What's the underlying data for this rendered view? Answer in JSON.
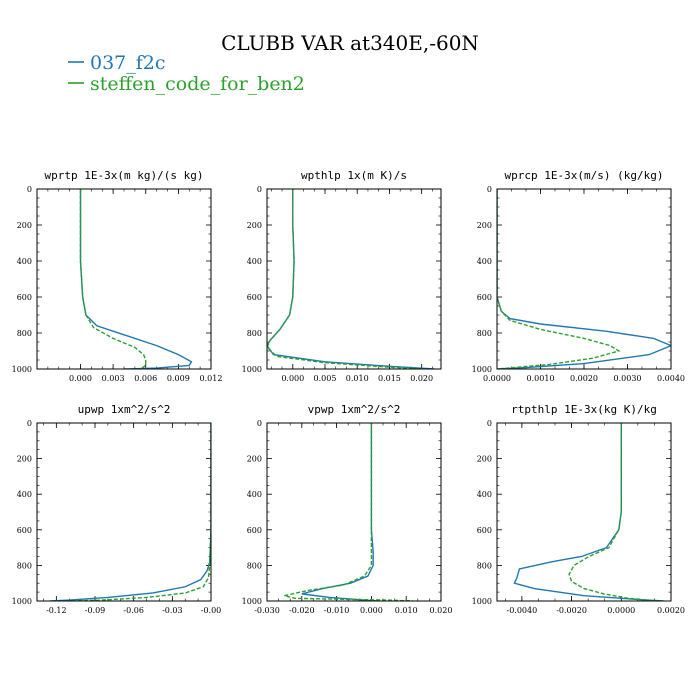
{
  "figure": {
    "title": "CLUBB VAR at340E,-60N",
    "legend": [
      {
        "label": "037_f2c",
        "color": "#1f77b4",
        "dash": "solid"
      },
      {
        "label": "steffen_code_for_ben2",
        "color": "#2ca02c",
        "dash": "dashed"
      }
    ]
  },
  "chart_data": [
    {
      "type": "line",
      "title": "wprtp  1E-3x(m kg)/(s kg)",
      "xlim": [
        -0.004,
        0.012
      ],
      "ylim": [
        0,
        1000
      ],
      "y_inverted": true,
      "xticks": [
        0.0,
        0.003,
        0.006,
        0.009,
        0.012
      ],
      "xtick_labels": [
        "0.000",
        "0.003",
        "0.006",
        "0.009",
        "0.012"
      ],
      "yticks": [
        0,
        200,
        400,
        600,
        800,
        1000
      ],
      "series": [
        {
          "name": "037_f2c",
          "color": "#1f77b4",
          "points": [
            [
              0.0,
              0
            ],
            [
              0.0,
              200
            ],
            [
              0.0,
              400
            ],
            [
              0.0002,
              600
            ],
            [
              0.0005,
              700
            ],
            [
              0.0015,
              760
            ],
            [
              0.004,
              810
            ],
            [
              0.007,
              870
            ],
            [
              0.009,
              920
            ],
            [
              0.0102,
              960
            ],
            [
              0.01,
              980
            ],
            [
              0.007,
              995
            ],
            [
              0.004,
              1000
            ]
          ]
        },
        {
          "name": "steffen_code_for_ben2",
          "color": "#2ca02c",
          "points": [
            [
              0.0,
              0
            ],
            [
              0.0,
              200
            ],
            [
              0.0,
              400
            ],
            [
              0.0002,
              600
            ],
            [
              0.0005,
              700
            ],
            [
              0.0012,
              770
            ],
            [
              0.003,
              830
            ],
            [
              0.005,
              880
            ],
            [
              0.0058,
              920
            ],
            [
              0.006,
              950
            ],
            [
              0.006,
              980
            ],
            [
              0.0055,
              1000
            ]
          ]
        }
      ]
    },
    {
      "type": "line",
      "title": "wpthlp  1x(m K)/s",
      "xlim": [
        -0.004,
        0.023
      ],
      "ylim": [
        0,
        1000
      ],
      "y_inverted": true,
      "xticks": [
        0.0,
        0.005,
        0.01,
        0.015,
        0.02
      ],
      "xtick_labels": [
        "0.000",
        "0.005",
        "0.010",
        "0.015",
        "0.020"
      ],
      "yticks": [
        0,
        200,
        400,
        600,
        800,
        1000
      ],
      "series": [
        {
          "name": "037_f2c",
          "color": "#1f77b4",
          "points": [
            [
              0.0,
              0
            ],
            [
              0.0,
              200
            ],
            [
              0.0002,
              400
            ],
            [
              0.0,
              600
            ],
            [
              -0.0005,
              700
            ],
            [
              -0.002,
              780
            ],
            [
              -0.0035,
              840
            ],
            [
              -0.004,
              870
            ],
            [
              -0.003,
              920
            ],
            [
              0.005,
              960
            ],
            [
              0.015,
              985
            ],
            [
              0.022,
              1000
            ]
          ]
        },
        {
          "name": "steffen_code_for_ben2",
          "color": "#2ca02c",
          "points": [
            [
              0.0,
              0
            ],
            [
              0.0,
              200
            ],
            [
              0.0002,
              400
            ],
            [
              0.0,
              600
            ],
            [
              -0.0005,
              700
            ],
            [
              -0.002,
              780
            ],
            [
              -0.0035,
              840
            ],
            [
              -0.004,
              880
            ],
            [
              -0.0025,
              930
            ],
            [
              0.005,
              965
            ],
            [
              0.015,
              990
            ],
            [
              0.02,
              1000
            ]
          ]
        }
      ]
    },
    {
      "type": "line",
      "title": "wprcp  1E-3x(m/s) (kg/kg)",
      "xlim": [
        0,
        0.004
      ],
      "ylim": [
        0,
        1000
      ],
      "y_inverted": true,
      "xticks": [
        0.0,
        0.001,
        0.002,
        0.003,
        0.004
      ],
      "xtick_labels": [
        "0.0000",
        "0.0010",
        "0.0020",
        "0.0030",
        "0.0040"
      ],
      "yticks": [
        0,
        200,
        400,
        600,
        800,
        1000
      ],
      "series": [
        {
          "name": "037_f2c",
          "color": "#1f77b4",
          "points": [
            [
              0.0,
              0
            ],
            [
              0.0,
              400
            ],
            [
              0.0,
              600
            ],
            [
              0.0001,
              680
            ],
            [
              0.0003,
              720
            ],
            [
              0.001,
              750
            ],
            [
              0.0025,
              790
            ],
            [
              0.0036,
              830
            ],
            [
              0.004,
              870
            ],
            [
              0.0035,
              920
            ],
            [
              0.002,
              970
            ],
            [
              0.0008,
              990
            ],
            [
              0.0,
              1000
            ]
          ]
        },
        {
          "name": "steffen_code_for_ben2",
          "color": "#2ca02c",
          "points": [
            [
              0.0,
              0
            ],
            [
              0.0,
              400
            ],
            [
              0.0,
              600
            ],
            [
              0.0001,
              680
            ],
            [
              0.0003,
              730
            ],
            [
              0.001,
              780
            ],
            [
              0.002,
              830
            ],
            [
              0.0026,
              870
            ],
            [
              0.0028,
              900
            ],
            [
              0.0022,
              940
            ],
            [
              0.0012,
              975
            ],
            [
              0.0,
              1000
            ]
          ]
        }
      ]
    },
    {
      "type": "line",
      "title": "upwp  1xm^2/s^2",
      "xlim": [
        -0.135,
        0.0
      ],
      "ylim": [
        0,
        1000
      ],
      "y_inverted": true,
      "xticks": [
        -0.12,
        -0.09,
        -0.06,
        -0.03,
        0.0
      ],
      "xtick_labels": [
        "-0.12",
        "-0.09",
        "-0.06",
        "-0.03",
        "-0.00"
      ],
      "yticks": [
        0,
        200,
        400,
        600,
        800,
        1000
      ],
      "series": [
        {
          "name": "037_f2c",
          "color": "#1f77b4",
          "points": [
            [
              0.0,
              0
            ],
            [
              0.0,
              200
            ],
            [
              0.0,
              600
            ],
            [
              -0.001,
              780
            ],
            [
              -0.003,
              830
            ],
            [
              -0.008,
              880
            ],
            [
              -0.02,
              920
            ],
            [
              -0.045,
              955
            ],
            [
              -0.08,
              980
            ],
            [
              -0.11,
              995
            ],
            [
              -0.125,
              1000
            ]
          ]
        },
        {
          "name": "steffen_code_for_ben2",
          "color": "#2ca02c",
          "points": [
            [
              0.0,
              0
            ],
            [
              0.0,
              200
            ],
            [
              0.0,
              600
            ],
            [
              -0.001,
              800
            ],
            [
              -0.002,
              870
            ],
            [
              -0.006,
              920
            ],
            [
              -0.02,
              955
            ],
            [
              -0.05,
              980
            ],
            [
              -0.085,
              995
            ],
            [
              -0.11,
              1000
            ]
          ]
        }
      ]
    },
    {
      "type": "line",
      "title": "vpwp  1xm^2/s^2",
      "xlim": [
        -0.03,
        0.02
      ],
      "ylim": [
        0,
        1000
      ],
      "y_inverted": true,
      "xticks": [
        -0.03,
        -0.02,
        -0.01,
        0.0,
        0.01,
        0.02
      ],
      "xtick_labels": [
        "-0.030",
        "-0.020",
        "-0.010",
        "0.000",
        "0.010",
        "0.020"
      ],
      "yticks": [
        0,
        200,
        400,
        600,
        800,
        1000
      ],
      "series": [
        {
          "name": "037_f2c",
          "color": "#1f77b4",
          "points": [
            [
              0.0,
              0
            ],
            [
              0.0,
              200
            ],
            [
              0.0,
              400
            ],
            [
              0.0,
              600
            ],
            [
              0.0005,
              720
            ],
            [
              0.0005,
              800
            ],
            [
              -0.001,
              860
            ],
            [
              -0.006,
              900
            ],
            [
              -0.014,
              930
            ],
            [
              -0.02,
              960
            ],
            [
              -0.012,
              980
            ],
            [
              -0.002,
              995
            ],
            [
              0.002,
              1000
            ]
          ]
        },
        {
          "name": "steffen_code_for_ben2",
          "color": "#2ca02c",
          "points": [
            [
              0.0,
              0
            ],
            [
              0.0,
              200
            ],
            [
              0.0,
              400
            ],
            [
              0.0,
              600
            ],
            [
              0.0,
              720
            ],
            [
              0.0,
              800
            ],
            [
              -0.002,
              860
            ],
            [
              -0.008,
              910
            ],
            [
              -0.018,
              940
            ],
            [
              -0.025,
              970
            ],
            [
              -0.022,
              985
            ],
            [
              0.005,
              995
            ],
            [
              0.012,
              1000
            ]
          ]
        }
      ]
    },
    {
      "type": "line",
      "title": "rtpthlp  1E-3x(kg K)/kg",
      "xlim": [
        -0.005,
        0.002
      ],
      "ylim": [
        0,
        1000
      ],
      "y_inverted": true,
      "xticks": [
        -0.004,
        -0.002,
        0.0,
        0.002
      ],
      "xtick_labels": [
        "-0.0040",
        "-0.0020",
        "0.0000",
        "0.0020"
      ],
      "yticks": [
        0,
        200,
        400,
        600,
        800,
        1000
      ],
      "series": [
        {
          "name": "037_f2c",
          "color": "#1f77b4",
          "points": [
            [
              0.0,
              0
            ],
            [
              0.0,
              200
            ],
            [
              0.0,
              400
            ],
            [
              0.0,
              500
            ],
            [
              -0.0001,
              600
            ],
            [
              -0.0006,
              700
            ],
            [
              -0.0016,
              750
            ],
            [
              -0.0028,
              780
            ],
            [
              -0.0041,
              820
            ],
            [
              -0.0042,
              870
            ],
            [
              -0.0043,
              900
            ],
            [
              -0.0035,
              930
            ],
            [
              -0.0015,
              970
            ],
            [
              0.0005,
              990
            ],
            [
              0.0017,
              1000
            ]
          ]
        },
        {
          "name": "steffen_code_for_ben2",
          "color": "#2ca02c",
          "points": [
            [
              0.0,
              0
            ],
            [
              0.0,
              200
            ],
            [
              0.0,
              400
            ],
            [
              0.0,
              500
            ],
            [
              -0.0001,
              600
            ],
            [
              -0.0005,
              700
            ],
            [
              -0.0013,
              750
            ],
            [
              -0.0019,
              800
            ],
            [
              -0.0021,
              850
            ],
            [
              -0.002,
              890
            ],
            [
              -0.0015,
              930
            ],
            [
              -0.0007,
              960
            ],
            [
              0.0003,
              985
            ],
            [
              0.0015,
              1000
            ]
          ]
        }
      ]
    }
  ]
}
